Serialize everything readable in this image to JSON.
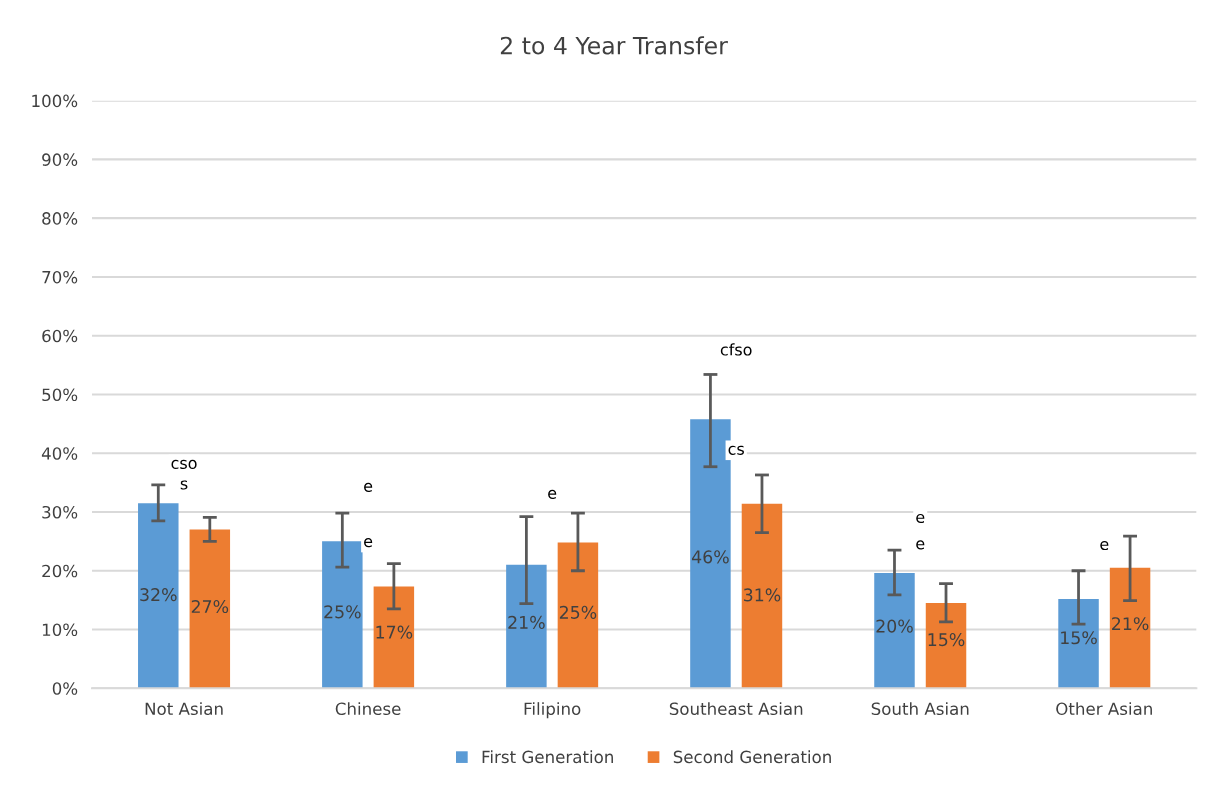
{
  "chart_data": {
    "type": "bar",
    "title": "2 to 4 Year Transfer",
    "categories": [
      "Not Asian",
      "Chinese",
      "Filipino",
      "Southeast Asian",
      "South Asian",
      "Other Asian"
    ],
    "series": [
      {
        "name": "First Generation",
        "color": "#5b9bd5",
        "values": [
          31.5,
          25.0,
          21.0,
          45.8,
          19.6,
          15.2
        ],
        "errors": [
          [
            28.5,
            34.6
          ],
          [
            20.6,
            29.8
          ],
          [
            14.4,
            29.2
          ],
          [
            37.7,
            53.4
          ],
          [
            15.9,
            23.5
          ],
          [
            10.9,
            20.0
          ]
        ],
        "value_labels": [
          "32%",
          "25%",
          "21%",
          "46%",
          "20%",
          "15%"
        ]
      },
      {
        "name": "Second Generation",
        "color": "#ed7d31",
        "values": [
          27.0,
          17.3,
          24.8,
          31.4,
          14.5,
          20.5
        ],
        "errors": [
          [
            25.0,
            29.1
          ],
          [
            13.5,
            21.2
          ],
          [
            20.0,
            29.8
          ],
          [
            26.5,
            36.3
          ],
          [
            11.3,
            17.8
          ],
          [
            14.9,
            25.9
          ]
        ],
        "value_labels": [
          "27%",
          "17%",
          "25%",
          "31%",
          "15%",
          "21%"
        ]
      }
    ],
    "ylim": [
      0,
      100
    ],
    "yticks": [
      {
        "value": 0,
        "label": "0%"
      },
      {
        "value": 10,
        "label": "10%"
      },
      {
        "value": 20,
        "label": "20%"
      },
      {
        "value": 30,
        "label": "30%"
      },
      {
        "value": 40,
        "label": "40%"
      },
      {
        "value": 50,
        "label": "50%"
      },
      {
        "value": 60,
        "label": "60%"
      },
      {
        "value": 70,
        "label": "70%"
      },
      {
        "value": 80,
        "label": "80%"
      },
      {
        "value": 90,
        "label": "90%"
      },
      {
        "value": 100,
        "label": "100%"
      }
    ],
    "annotations": [
      {
        "text": "cso",
        "x": "Not Asian",
        "y": 38.1
      },
      {
        "text": "s",
        "x": "Not Asian",
        "y": 34.6
      },
      {
        "text": "e",
        "x": "Chinese",
        "y": 34.2
      },
      {
        "text": "e",
        "x": "Chinese",
        "y": 24.8
      },
      {
        "text": "e",
        "x": "Filipino",
        "y": 33.0
      },
      {
        "text": "cfso",
        "x": "Southeast Asian",
        "y": 57.4
      },
      {
        "text": "cs",
        "x": "Southeast Asian",
        "y": 40.5
      },
      {
        "text": "e",
        "x": "South Asian",
        "y": 28.9
      },
      {
        "text": "e",
        "x": "South Asian",
        "y": 24.4
      },
      {
        "text": "e",
        "x": "Other Asian",
        "y": 24.3
      }
    ],
    "grid": "y",
    "legend": "bottom"
  }
}
